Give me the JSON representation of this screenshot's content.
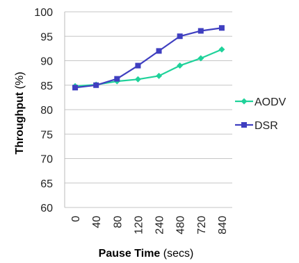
{
  "chart_data": {
    "type": "line",
    "categories": [
      "0",
      "40",
      "80",
      "120",
      "240",
      "480",
      "720",
      "840"
    ],
    "series": [
      {
        "name": "AODV",
        "values": [
          84.8,
          85.1,
          85.8,
          86.2,
          86.9,
          89.0,
          90.5,
          92.3
        ],
        "color": "#1fd29a",
        "marker": "diamond"
      },
      {
        "name": "DSR",
        "values": [
          84.5,
          85.0,
          86.3,
          89.0,
          92.0,
          95.0,
          96.1,
          96.7
        ],
        "color": "#3f3fc0",
        "marker": "square"
      }
    ],
    "xlabel_bold": "Pause Time",
    "xlabel_unit": " (secs)",
    "ylabel_bold": "Throughput",
    "ylabel_unit": " (%)",
    "ylim": [
      60,
      100
    ],
    "yticks": [
      60,
      65,
      70,
      75,
      80,
      85,
      90,
      95,
      100
    ],
    "grid": true,
    "legend_position": "right"
  }
}
